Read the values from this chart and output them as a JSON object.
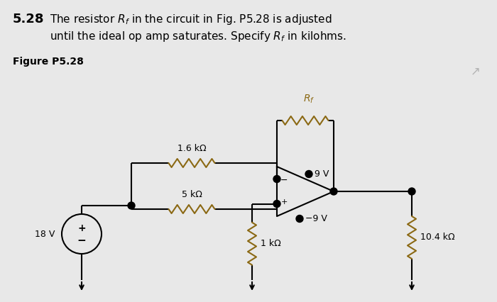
{
  "title_number": "5.28",
  "title_text": "The resistor $R_f$ in the circuit in Fig. P5.28 is adjusted\nuntil the ideal op amp saturates. Specify $R_f$ in kilohms.",
  "figure_label": "Figure P5.28",
  "background_color": "#e8e8e8",
  "resistor_color": "#8B6914",
  "line_color": "#000000",
  "labels": {
    "Rf": "$R_f$",
    "R1": "1.6 kΩ",
    "R2": "5 kΩ",
    "R3": "1 kΩ",
    "R4": "10.4 kΩ",
    "V1": "18 V",
    "V_pos": "9 V",
    "V_neg": "−9 V"
  },
  "figsize": [
    7.0,
    4.26
  ],
  "dpi": 100
}
